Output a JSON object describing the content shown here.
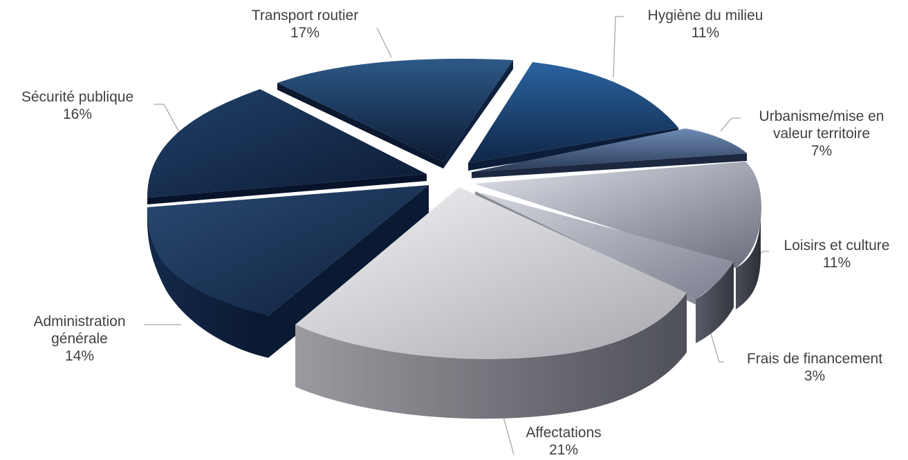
{
  "chart_data": {
    "type": "pie",
    "style": "3d-exploded",
    "slices": [
      {
        "key": "affectations",
        "name": "Affectations",
        "percent_label": "21%",
        "value": 21,
        "color": "#c9c9cf"
      },
      {
        "key": "administration",
        "name": "Administration générale",
        "percent_label": "14%",
        "value": 14,
        "color": "#1b3556"
      },
      {
        "key": "securite",
        "name": "Sécurité publique",
        "percent_label": "16%",
        "value": 16,
        "color": "#15294a"
      },
      {
        "key": "transport",
        "name": "Transport routier",
        "percent_label": "17%",
        "value": 17,
        "color": "#1c3a63"
      },
      {
        "key": "hygiene",
        "name": "Hygiène du milieu",
        "percent_label": "11%",
        "value": 11,
        "color": "#1f4b80"
      },
      {
        "key": "urbanisme",
        "name": "Urbanisme/mise en valeur territoire",
        "percent_label": "7%",
        "value": 7,
        "color": "#4d6b95"
      },
      {
        "key": "loisirs",
        "name": "Loisirs et culture",
        "percent_label": "11%",
        "value": 11,
        "color": "#a9aebb"
      },
      {
        "key": "frais",
        "name": "Frais de financement",
        "percent_label": "3%",
        "value": 3,
        "color": "#b8bcc4"
      }
    ],
    "labels": {
      "transport": {
        "lines": [
          "Transport routier"
        ]
      },
      "hygiene": {
        "lines": [
          "Hygiène du milieu"
        ]
      },
      "securite": {
        "lines": [
          "Sécurité publique"
        ]
      },
      "urbanisme": {
        "lines": [
          "Urbanisme/mise en",
          "valeur territoire"
        ]
      },
      "loisirs": {
        "lines": [
          "Loisirs et culture"
        ]
      },
      "administration": {
        "lines": [
          "Administration",
          "générale"
        ]
      },
      "frais": {
        "lines": [
          "Frais de financement"
        ]
      },
      "affectations": {
        "lines": [
          "Affectations"
        ]
      }
    }
  }
}
